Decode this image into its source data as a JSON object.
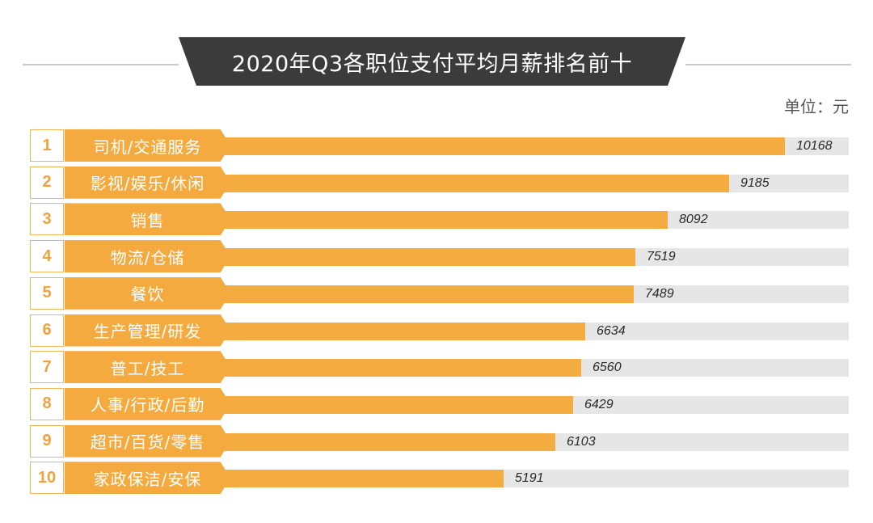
{
  "title": "2020年Q3各职位支付平均月薪排名前十",
  "unit_label": "单位：元",
  "colors": {
    "bar": "#f4ab3f",
    "label_bg": "#f5aa3f",
    "track": "#e6e6e6",
    "rank_text": "#f0a23d",
    "banner": "#3b3b3b"
  },
  "chart_data": {
    "type": "bar",
    "orientation": "horizontal",
    "title": "2020年Q3各职位支付平均月薪排名前十",
    "unit": "单位：元",
    "ranks": [
      "1",
      "2",
      "3",
      "4",
      "5",
      "6",
      "7",
      "8",
      "9",
      "10"
    ],
    "categories": [
      "司机/交通服务",
      "影视/娱乐/休闲",
      "销售",
      "物流/仓储",
      "餐饮",
      "生产管理/研发",
      "普工/技工",
      "人事/行政/后勤",
      "超市/百货/零售",
      "家政保洁/安保"
    ],
    "values": [
      10168,
      9185,
      8092,
      7519,
      7489,
      6634,
      6560,
      6429,
      6103,
      5191
    ],
    "value_labels": [
      "10168",
      "9185",
      "8092",
      "7519",
      "7489",
      "6634",
      "6560",
      "6429",
      "6103",
      "5191"
    ],
    "xlim": [
      0,
      11300
    ],
    "grid": false,
    "legend": "none"
  }
}
